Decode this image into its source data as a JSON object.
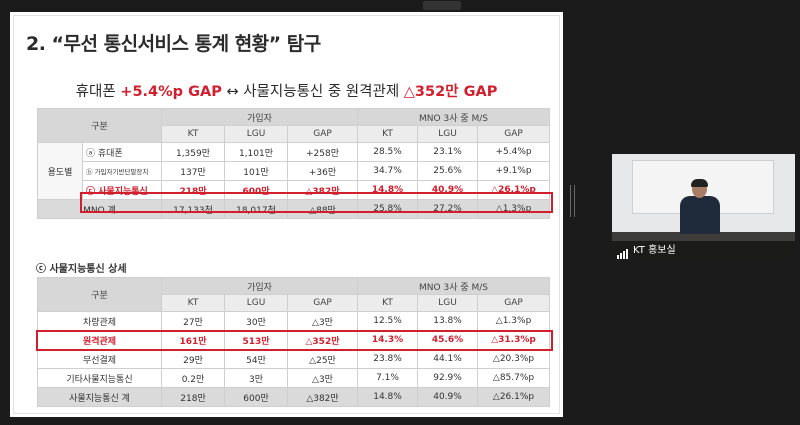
{
  "slide": {
    "title": "2. “무선 통신서비스 통계 현황” 탐구",
    "subtitle": {
      "part1": "휴대폰 ",
      "part2": "+5.4%p GAP",
      "part3": " ↔ 사물지능통신 중 원격관제 ",
      "part4": "△352만 GAP"
    },
    "table1": {
      "group_header": "구분",
      "subscribers_header": "가입자",
      "ms_header": "MNO 3사 중 M/S",
      "columns": [
        "KT",
        "LGU",
        "GAP",
        "KT",
        "LGU",
        "GAP"
      ],
      "usage_label": "용도별",
      "rows": [
        {
          "label": "ⓐ 휴대폰",
          "cells": [
            "1,359만",
            "1,101만",
            "+258만",
            "28.5%",
            "23.1%",
            "+5.4%p"
          ]
        },
        {
          "label": "ⓑ 가입자기반단말장치",
          "cells": [
            "137만",
            "101만",
            "+36만",
            "34.7%",
            "25.6%",
            "+9.1%p"
          ]
        },
        {
          "label": "ⓒ 사물지능통신",
          "cells": [
            "218만",
            "600만",
            "△382만",
            "14.8%",
            "40.9%",
            "△26.1%p"
          ]
        }
      ],
      "total": {
        "label": "MNO 계",
        "cells": [
          "17,133천",
          "18,017천",
          "△88만",
          "25.8%",
          "27.2%",
          "△1.3%p"
        ]
      }
    },
    "section2_title": "ⓒ 사물지능통신 상세",
    "table2": {
      "group_header": "구분",
      "subscribers_header": "가입자",
      "ms_header": "MNO 3사 중 M/S",
      "columns": [
        "KT",
        "LGU",
        "GAP",
        "KT",
        "LGU",
        "GAP"
      ],
      "rows": [
        {
          "label": "차량관제",
          "cells": [
            "27만",
            "30만",
            "△3만",
            "12.5%",
            "13.8%",
            "△1.3%p"
          ]
        },
        {
          "label": "원격관제",
          "cells": [
            "161만",
            "513만",
            "△352만",
            "14.3%",
            "45.6%",
            "△31.3%p"
          ]
        },
        {
          "label": "무선결제",
          "cells": [
            "29만",
            "54만",
            "△25만",
            "23.8%",
            "44.1%",
            "△20.3%p"
          ]
        },
        {
          "label": "기타사물지능통신",
          "cells": [
            "0.2만",
            "3만",
            "△3만",
            "7.1%",
            "92.9%",
            "△85.7%p"
          ]
        }
      ],
      "total": {
        "label": "사물지능통신 계",
        "cells": [
          "218만",
          "600만",
          "△382만",
          "14.8%",
          "40.9%",
          "△26.1%p"
        ]
      }
    }
  },
  "video": {
    "participant_name": "KT 홍보실",
    "signal_icon": "signal-bars-icon"
  },
  "colors": {
    "accent_red": "#d11f2e",
    "header_gray": "#d7d7d7"
  }
}
